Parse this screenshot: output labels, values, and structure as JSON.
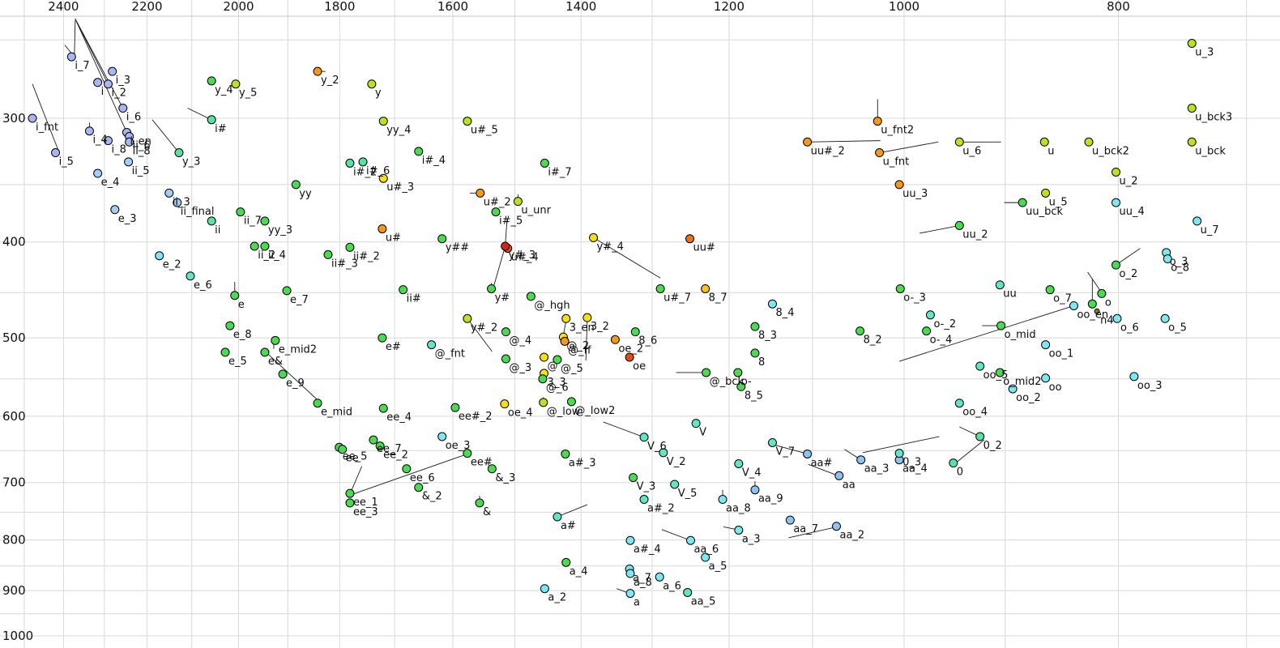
{
  "chart_data": {
    "type": "scatter",
    "title": "",
    "x_axis": {
      "label": "",
      "unit": "Hz",
      "scale": "log",
      "reversed": true,
      "ticks": [
        2400,
        2200,
        2000,
        1800,
        1600,
        1400,
        1200,
        1000,
        800
      ],
      "gridlines": [
        2500,
        2400,
        2300,
        2200,
        2100,
        2000,
        1900,
        1800,
        1700,
        1600,
        1500,
        1400,
        1300,
        1200,
        1100,
        1000,
        900,
        800,
        700
      ]
    },
    "y_axis": {
      "label": "",
      "unit": "Hz",
      "scale": "log",
      "reversed": true,
      "ticks": [
        300,
        400,
        500,
        600,
        700,
        800,
        900,
        1000
      ],
      "gridlines": [
        250,
        300,
        350,
        400,
        450,
        500,
        550,
        600,
        650,
        700,
        750,
        800,
        850,
        900,
        950,
        1000
      ]
    },
    "legend": null,
    "palette": {
      "lv": "#aab6f2",
      "lb": "#a3cdf5",
      "cy": "#7de9ef",
      "bl": "#90c2f0",
      "te": "#5fe6c4",
      "gt": "#55e3a2",
      "gr": "#4bdb52",
      "yg": "#b9e31f",
      "ye": "#f5e014",
      "yo": "#f5c123",
      "or": "#f59a18",
      "do": "#ee7211",
      "od": "#e84a0e",
      "re": "#d62418",
      "ol": "#7c7c34"
    },
    "points": [
      [
        "i_fnt",
        2479,
        300,
        "lv"
      ],
      [
        "i_7",
        2380,
        260,
        "lv"
      ],
      [
        "i_3",
        2281,
        269,
        "lv"
      ],
      [
        "i_2",
        2291,
        277,
        "lv"
      ],
      [
        "i",
        2316,
        276,
        "lv"
      ],
      [
        "i_6",
        2256,
        293,
        "lv"
      ],
      [
        "i_en",
        2247,
        310,
        "lv"
      ],
      [
        "ii_6",
        2241,
        313,
        "lv"
      ],
      [
        "ii_8",
        2241,
        317,
        "lv"
      ],
      [
        "i_4",
        2336,
        309,
        "lv"
      ],
      [
        "i_8",
        2291,
        316,
        "lv"
      ],
      [
        "i_5",
        2420,
        325,
        "lv"
      ],
      [
        "ii_5",
        2243,
        332,
        "lb"
      ],
      [
        "e_4",
        2316,
        341,
        "lb"
      ],
      [
        "e_3",
        2275,
        371,
        "lb"
      ],
      [
        "ii_3",
        2150,
        357,
        "lb"
      ],
      [
        "ii_final",
        2132,
        365,
        "lb"
      ],
      [
        "e_2",
        2172,
        413,
        "cy"
      ],
      [
        "e_6",
        2103,
        433,
        "te"
      ],
      [
        "ii",
        2057,
        381,
        "gt"
      ],
      [
        "ii_7",
        1996,
        373,
        "gr"
      ],
      [
        "yy_3",
        1946,
        381,
        "gr"
      ],
      [
        "yy",
        1884,
        350,
        "gr"
      ],
      [
        "ii_2",
        1967,
        404,
        "gr"
      ],
      [
        "ii_4",
        1946,
        404,
        "gr"
      ],
      [
        "i#",
        2057,
        301,
        "gt"
      ],
      [
        "y_3",
        2128,
        325,
        "gt"
      ],
      [
        "y_4",
        2057,
        275,
        "gr"
      ],
      [
        "y_5",
        2006,
        277,
        "yg"
      ],
      [
        "y_2",
        1842,
        269,
        "or"
      ],
      [
        "y",
        1741,
        277,
        "yg"
      ],
      [
        "yy_4",
        1720,
        302,
        "yg"
      ],
      [
        "e",
        2008,
        453,
        "gr"
      ],
      [
        "e_7",
        1902,
        448,
        "gr"
      ],
      [
        "e_8",
        2018,
        486,
        "gr"
      ],
      [
        "e_mid2",
        1925,
        503,
        "gr"
      ],
      [
        "e_5",
        2028,
        517,
        "gr"
      ],
      [
        "e&",
        1946,
        517,
        "gr"
      ],
      [
        "e_9",
        1910,
        544,
        "gr"
      ],
      [
        "e_mid",
        1842,
        582,
        "gr"
      ],
      [
        "e#",
        1722,
        500,
        "gr"
      ],
      [
        "ii#_3",
        1822,
        412,
        "gr"
      ],
      [
        "ii#_2",
        1781,
        405,
        "gr"
      ],
      [
        "ii#",
        1685,
        447,
        "gr"
      ],
      [
        "i#_2",
        1781,
        333,
        "gt"
      ],
      [
        "i#_6",
        1757,
        332,
        "gt"
      ],
      [
        "i#_4",
        1658,
        324,
        "gr"
      ],
      [
        "i#_5",
        1530,
        373,
        "gr"
      ],
      [
        "i#_7",
        1454,
        333,
        "gr"
      ],
      [
        "u#_3",
        1720,
        345,
        "ye"
      ],
      [
        "u#_5",
        1576,
        302,
        "yg"
      ],
      [
        "u#_2",
        1555,
        357,
        "or"
      ],
      [
        "u_unr",
        1495,
        364,
        "yg"
      ],
      [
        "u#",
        1722,
        388,
        "or"
      ],
      [
        "u#_4",
        1511,
        406,
        "od"
      ],
      [
        "u#_7",
        1289,
        446,
        "gr"
      ],
      [
        "y##",
        1618,
        397,
        "gr"
      ],
      [
        "y#_3",
        1515,
        404,
        "re"
      ],
      [
        "y#",
        1537,
        446,
        "gr"
      ],
      [
        "y#_2",
        1576,
        478,
        "yg"
      ],
      [
        "y#_4",
        1382,
        396,
        "ye"
      ],
      [
        "@_hgh",
        1475,
        454,
        "gr"
      ],
      [
        "@_fnt",
        1636,
        508,
        "te"
      ],
      [
        "@_4",
        1514,
        493,
        "gr"
      ],
      [
        "@_2",
        1426,
        499,
        "ye"
      ],
      [
        "@_ff",
        1424,
        504,
        "or"
      ],
      [
        "@",
        1455,
        523,
        "ye"
      ],
      [
        "@_3",
        1514,
        525,
        "gr"
      ],
      [
        "@_5",
        1435,
        526,
        "gr"
      ],
      [
        "3_3",
        1455,
        543,
        "ye"
      ],
      [
        "@_6",
        1457,
        550,
        "gr"
      ],
      [
        "@_low",
        1456,
        581,
        "yg"
      ],
      [
        "@_low2",
        1414,
        580,
        "gr"
      ],
      [
        "3_en",
        1422,
        478,
        "ye"
      ],
      [
        "3_2",
        1391,
        477,
        "ye"
      ],
      [
        "oe_2",
        1351,
        502,
        "or"
      ],
      [
        "oe",
        1331,
        523,
        "od"
      ],
      [
        "oe_4",
        1516,
        583,
        "ye"
      ],
      [
        "oe_3",
        1618,
        629,
        "cy"
      ],
      [
        "8_7",
        1230,
        446,
        "yo"
      ],
      [
        "8_4",
        1147,
        462,
        "cy"
      ],
      [
        "8_3",
        1168,
        487,
        "gr"
      ],
      [
        "8",
        1168,
        518,
        "gr"
      ],
      [
        "8_2",
        1047,
        492,
        "gr"
      ],
      [
        "8_5",
        1185,
        560,
        "gr"
      ],
      [
        "8_6",
        1323,
        493,
        "gr"
      ],
      [
        "uu#",
        1250,
        397,
        "do"
      ],
      [
        "@_bck",
        1229,
        542,
        "gr"
      ],
      [
        "o-",
        1189,
        542,
        "gr"
      ],
      [
        "ee_4",
        1720,
        589,
        "gr"
      ],
      [
        "ee#_2",
        1596,
        588,
        "gr"
      ],
      [
        "ee_5",
        1801,
        645,
        "gr"
      ],
      [
        "ee",
        1795,
        648,
        "gr"
      ],
      [
        "ee_7",
        1738,
        634,
        "gr"
      ],
      [
        "ee_2",
        1726,
        643,
        "gr"
      ],
      [
        "ee#",
        1576,
        654,
        "gr"
      ],
      [
        "ee_6",
        1679,
        678,
        "gr"
      ],
      [
        "&_3",
        1536,
        678,
        "gr"
      ],
      [
        "&_2",
        1658,
        708,
        "gr"
      ],
      [
        "ee_1",
        1781,
        718,
        "gr"
      ],
      [
        "ee_3",
        1781,
        734,
        "gr"
      ],
      [
        "&",
        1556,
        734,
        "gr"
      ],
      [
        "a#_3",
        1423,
        655,
        "gr"
      ],
      [
        "a#",
        1435,
        758,
        "te"
      ],
      [
        "a#_2",
        1311,
        728,
        "te"
      ],
      [
        "a#_4",
        1330,
        801,
        "cy"
      ],
      [
        "V",
        1242,
        610,
        "te"
      ],
      [
        "V_6",
        1311,
        630,
        "te"
      ],
      [
        "V_2",
        1285,
        653,
        "te"
      ],
      [
        "V_4",
        1188,
        670,
        "te"
      ],
      [
        "V_7",
        1147,
        638,
        "te"
      ],
      [
        "V_3",
        1326,
        692,
        "gr"
      ],
      [
        "V_5",
        1270,
        703,
        "te"
      ],
      [
        "aa_8",
        1208,
        728,
        "cy"
      ],
      [
        "aa_9",
        1168,
        712,
        "bl"
      ],
      [
        "aa#",
        1106,
        655,
        "bl"
      ],
      [
        "aa",
        1070,
        689,
        "bl"
      ],
      [
        "aa_3",
        1046,
        664,
        "bl"
      ],
      [
        "aa_7",
        1126,
        764,
        "bl"
      ],
      [
        "aa_2",
        1073,
        775,
        "bl"
      ],
      [
        "aa_4",
        1005,
        664,
        "bl"
      ],
      [
        "aa_6",
        1249,
        801,
        "cy"
      ],
      [
        "aa_5",
        1253,
        904,
        "te"
      ],
      [
        "a_3",
        1188,
        782,
        "cy"
      ],
      [
        "a_5",
        1230,
        833,
        "cy"
      ],
      [
        "a_7",
        1331,
        856,
        "cy"
      ],
      [
        "a_8",
        1330,
        865,
        "cy"
      ],
      [
        "a_6",
        1290,
        872,
        "cy"
      ],
      [
        "a_4",
        1422,
        843,
        "gr"
      ],
      [
        "a_2",
        1454,
        896,
        "cy"
      ],
      [
        "a",
        1330,
        906,
        "cy"
      ],
      [
        "0_3",
        1005,
        654,
        "te"
      ],
      [
        "0",
        950,
        669,
        "gt"
      ],
      [
        "0_2",
        924,
        629,
        "gt"
      ],
      [
        "oo_4",
        944,
        582,
        "te"
      ],
      [
        "u_3",
        741,
        252,
        "yg"
      ],
      [
        "u_bck3",
        741,
        293,
        "yg"
      ],
      [
        "u_bck",
        741,
        317,
        "yg"
      ],
      [
        "u",
        864,
        317,
        "yg"
      ],
      [
        "u_bck2",
        825,
        317,
        "yg"
      ],
      [
        "u_2",
        802,
        340,
        "yg"
      ],
      [
        "u_5",
        863,
        357,
        "yg"
      ],
      [
        "uu_bck",
        884,
        365,
        "gr"
      ],
      [
        "uu_4",
        802,
        365,
        "cy"
      ],
      [
        "u_7",
        737,
        381,
        "cy"
      ],
      [
        "u_fnt2",
        1028,
        302,
        "or"
      ],
      [
        "uu#_2",
        1106,
        317,
        "or"
      ],
      [
        "u_fnt",
        1026,
        325,
        "or"
      ],
      [
        "u_6",
        944,
        317,
        "yg"
      ],
      [
        "uu_3",
        1005,
        350,
        "or"
      ],
      [
        "uu_2",
        944,
        385,
        "gr"
      ],
      [
        "o-_3",
        1004,
        446,
        "gr"
      ],
      [
        "uu",
        905,
        442,
        "te"
      ],
      [
        "o_7",
        859,
        447,
        "gr"
      ],
      [
        "o-_2",
        973,
        474,
        "te"
      ],
      [
        "o-_4",
        977,
        492,
        "gr"
      ],
      [
        "o_mid",
        904,
        486,
        "gr"
      ],
      [
        "oo_en",
        838,
        464,
        "cy"
      ],
      [
        "n4",
        818,
        470,
        "ol"
      ],
      [
        "o",
        814,
        451,
        "gr"
      ],
      [
        "",
        822,
        462,
        "gr"
      ],
      [
        "o_2",
        802,
        422,
        "gr"
      ],
      [
        "o_3",
        761,
        410,
        "cy"
      ],
      [
        "o_8",
        760,
        416,
        "cy"
      ],
      [
        "o_6",
        801,
        478,
        "cy"
      ],
      [
        "o_5",
        762,
        478,
        "cy"
      ],
      [
        "oo_1",
        863,
        508,
        "cy"
      ],
      [
        "oo_5",
        924,
        534,
        "te"
      ],
      [
        "o_mid2",
        905,
        542,
        "gr"
      ],
      [
        "oo",
        863,
        549,
        "cy"
      ],
      [
        "oo_2",
        893,
        563,
        "cy"
      ],
      [
        "oo_3",
        787,
        547,
        "cy"
      ]
    ],
    "segments": [
      [
        2371,
        238,
        2256,
        293
      ],
      [
        2371,
        238,
        2247,
        310
      ],
      [
        2371,
        238,
        2291,
        277
      ],
      [
        2371,
        239,
        2373,
        260
      ],
      [
        2397,
        253,
        2373,
        260
      ],
      [
        2479,
        277,
        2412,
        324
      ],
      [
        2188,
        301,
        2128,
        325
      ],
      [
        2109,
        293,
        2057,
        301
      ],
      [
        2336,
        303,
        2336,
        309
      ],
      [
        2008,
        439,
        2008,
        453
      ],
      [
        1940,
        519,
        1840,
        579
      ],
      [
        1576,
        655,
        1775,
        719
      ],
      [
        1759,
        674,
        1780,
        717
      ],
      [
        1842,
        269,
        1827,
        269
      ],
      [
        1572,
        357,
        1556,
        357
      ],
      [
        1495,
        358,
        1495,
        364
      ],
      [
        1515,
        404,
        1534,
        445
      ],
      [
        1512,
        379,
        1515,
        403
      ],
      [
        1576,
        478,
        1536,
        516
      ],
      [
        1422,
        480,
        1426,
        497
      ],
      [
        1391,
        480,
        1393,
        527
      ],
      [
        1382,
        396,
        1289,
        435
      ],
      [
        1268,
        542,
        1230,
        542
      ],
      [
        1368,
        608,
        1311,
        630
      ],
      [
        1146,
        641,
        1108,
        654
      ],
      [
        1105,
        671,
        1071,
        689
      ],
      [
        1064,
        648,
        1046,
        664
      ],
      [
        1044,
        653,
        964,
        629
      ],
      [
        1128,
        796,
        1075,
        777
      ],
      [
        1207,
        776,
        1190,
        781
      ],
      [
        1287,
        781,
        1249,
        801
      ],
      [
        1208,
        712,
        1208,
        726
      ],
      [
        1168,
        698,
        1168,
        711
      ],
      [
        1435,
        758,
        1391,
        737
      ],
      [
        1349,
        896,
        1331,
        906
      ],
      [
        901,
        365,
        884,
        365
      ],
      [
        1028,
        287,
        1028,
        301
      ],
      [
        1106,
        317,
        1025,
        316
      ],
      [
        1026,
        325,
        965,
        317
      ],
      [
        944,
        317,
        904,
        317
      ],
      [
        984,
        392,
        944,
        385
      ],
      [
        1005,
        528,
        838,
        464
      ],
      [
        922,
        486,
        907,
        486
      ],
      [
        822,
        436,
        822,
        461
      ],
      [
        826,
        429,
        813,
        452
      ],
      [
        802,
        422,
        782,
        406
      ],
      [
        944,
        615,
        924,
        629
      ],
      [
        947,
        668,
        920,
        634
      ],
      [
        1556,
        722,
        1556,
        738
      ],
      [
        1456,
        574,
        1456,
        580
      ],
      [
        1928,
        506,
        1928,
        513
      ],
      [
        1537,
        440,
        1537,
        445
      ]
    ],
    "marker": {
      "radius": 5,
      "small_radius": 3
    }
  }
}
